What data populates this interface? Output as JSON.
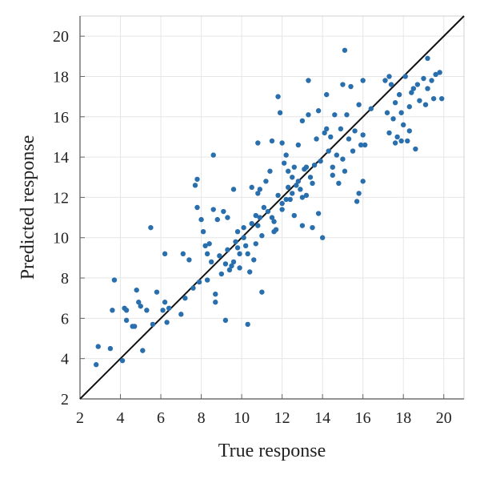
{
  "chart_data": {
    "type": "scatter",
    "title": "",
    "xlabel": "True response",
    "ylabel": "Predicted response",
    "xlim": [
      2,
      21
    ],
    "ylim": [
      2,
      21
    ],
    "xticks": [
      2,
      4,
      6,
      8,
      10,
      12,
      14,
      16,
      18,
      20
    ],
    "yticks": [
      2,
      4,
      6,
      8,
      10,
      12,
      14,
      16,
      18,
      20
    ],
    "grid": true,
    "legend": "none",
    "colors": {
      "points": "#2a6fad",
      "reference_line": "#111111"
    },
    "reference_line": {
      "from": [
        2,
        2
      ],
      "to": [
        21,
        21
      ]
    },
    "points": [
      [
        2.8,
        3.7
      ],
      [
        2.9,
        4.6
      ],
      [
        3.5,
        4.5
      ],
      [
        3.6,
        6.4
      ],
      [
        3.7,
        7.9
      ],
      [
        4.1,
        3.9
      ],
      [
        4.2,
        6.5
      ],
      [
        4.3,
        5.9
      ],
      [
        4.3,
        6.4
      ],
      [
        4.6,
        5.6
      ],
      [
        4.7,
        5.6
      ],
      [
        4.8,
        7.4
      ],
      [
        4.9,
        6.8
      ],
      [
        5.0,
        6.6
      ],
      [
        5.1,
        4.4
      ],
      [
        5.3,
        6.4
      ],
      [
        5.5,
        10.5
      ],
      [
        5.6,
        5.7
      ],
      [
        5.8,
        7.3
      ],
      [
        6.1,
        6.4
      ],
      [
        6.2,
        6.8
      ],
      [
        6.2,
        9.2
      ],
      [
        6.3,
        5.8
      ],
      [
        6.4,
        6.5
      ],
      [
        7.0,
        6.2
      ],
      [
        7.1,
        9.2
      ],
      [
        7.2,
        7.0
      ],
      [
        7.4,
        8.9
      ],
      [
        7.6,
        7.5
      ],
      [
        7.7,
        12.6
      ],
      [
        7.8,
        11.5
      ],
      [
        7.8,
        12.9
      ],
      [
        7.9,
        7.8
      ],
      [
        8.0,
        10.9
      ],
      [
        8.1,
        10.3
      ],
      [
        8.2,
        9.6
      ],
      [
        8.3,
        9.2
      ],
      [
        8.3,
        7.9
      ],
      [
        8.4,
        9.7
      ],
      [
        8.5,
        8.8
      ],
      [
        8.6,
        11.4
      ],
      [
        8.6,
        14.1
      ],
      [
        8.7,
        6.8
      ],
      [
        8.7,
        7.2
      ],
      [
        8.8,
        10.9
      ],
      [
        8.9,
        9.1
      ],
      [
        9.0,
        8.2
      ],
      [
        9.1,
        11.3
      ],
      [
        9.2,
        8.7
      ],
      [
        9.3,
        9.4
      ],
      [
        9.3,
        11.0
      ],
      [
        9.4,
        8.4
      ],
      [
        9.5,
        8.6
      ],
      [
        9.6,
        8.8
      ],
      [
        9.6,
        12.4
      ],
      [
        9.7,
        9.8
      ],
      [
        9.8,
        9.5
      ],
      [
        9.8,
        10.3
      ],
      [
        9.9,
        9.2
      ],
      [
        9.9,
        8.5
      ],
      [
        9.2,
        5.9
      ],
      [
        10.1,
        10.0
      ],
      [
        10.1,
        10.5
      ],
      [
        10.2,
        9.6
      ],
      [
        10.3,
        9.2
      ],
      [
        10.3,
        5.7
      ],
      [
        10.4,
        8.3
      ],
      [
        10.5,
        10.7
      ],
      [
        10.5,
        12.5
      ],
      [
        10.6,
        8.9
      ],
      [
        10.7,
        9.7
      ],
      [
        10.7,
        11.1
      ],
      [
        10.8,
        12.2
      ],
      [
        10.8,
        14.7
      ],
      [
        10.8,
        10.6
      ],
      [
        10.9,
        11.0
      ],
      [
        10.9,
        12.4
      ],
      [
        11.0,
        7.3
      ],
      [
        11.0,
        10.1
      ],
      [
        11.1,
        11.5
      ],
      [
        11.2,
        12.8
      ],
      [
        11.3,
        11.3
      ],
      [
        11.4,
        13.3
      ],
      [
        11.5,
        14.8
      ],
      [
        11.5,
        11.0
      ],
      [
        11.6,
        10.8
      ],
      [
        11.6,
        10.3
      ],
      [
        11.7,
        10.4
      ],
      [
        11.8,
        17.0
      ],
      [
        11.8,
        12.1
      ],
      [
        11.9,
        16.2
      ],
      [
        12.0,
        11.7
      ],
      [
        12.0,
        14.7
      ],
      [
        12.0,
        11.4
      ],
      [
        12.1,
        13.7
      ],
      [
        12.2,
        14.1
      ],
      [
        12.2,
        11.9
      ],
      [
        12.3,
        12.5
      ],
      [
        12.3,
        13.3
      ],
      [
        12.4,
        11.9
      ],
      [
        12.5,
        13.0
      ],
      [
        12.5,
        12.2
      ],
      [
        12.6,
        11.1
      ],
      [
        12.6,
        13.5
      ],
      [
        12.7,
        12.6
      ],
      [
        12.8,
        12.8
      ],
      [
        12.8,
        14.6
      ],
      [
        12.9,
        12.4
      ],
      [
        13.0,
        12.0
      ],
      [
        13.0,
        15.8
      ],
      [
        13.0,
        10.6
      ],
      [
        13.1,
        13.4
      ],
      [
        13.2,
        12.1
      ],
      [
        13.2,
        13.5
      ],
      [
        13.3,
        16.1
      ],
      [
        13.3,
        17.8
      ],
      [
        13.4,
        13.0
      ],
      [
        13.5,
        10.5
      ],
      [
        13.5,
        12.7
      ],
      [
        13.6,
        13.6
      ],
      [
        13.7,
        14.9
      ],
      [
        13.8,
        16.3
      ],
      [
        13.8,
        11.2
      ],
      [
        13.9,
        13.8
      ],
      [
        14.0,
        10.0
      ],
      [
        14.1,
        15.2
      ],
      [
        14.2,
        15.4
      ],
      [
        14.2,
        17.1
      ],
      [
        14.3,
        14.3
      ],
      [
        14.4,
        15.0
      ],
      [
        14.5,
        13.1
      ],
      [
        14.5,
        13.5
      ],
      [
        14.6,
        16.1
      ],
      [
        14.7,
        14.1
      ],
      [
        14.8,
        12.7
      ],
      [
        14.9,
        15.4
      ],
      [
        15.0,
        13.9
      ],
      [
        15.0,
        17.6
      ],
      [
        15.1,
        19.3
      ],
      [
        15.1,
        13.3
      ],
      [
        15.2,
        16.1
      ],
      [
        15.3,
        14.9
      ],
      [
        15.4,
        17.5
      ],
      [
        15.5,
        14.3
      ],
      [
        15.6,
        15.3
      ],
      [
        15.7,
        11.8
      ],
      [
        15.8,
        12.2
      ],
      [
        15.8,
        16.6
      ],
      [
        15.9,
        14.6
      ],
      [
        16.0,
        15.1
      ],
      [
        16.0,
        17.8
      ],
      [
        16.0,
        12.8
      ],
      [
        16.1,
        14.6
      ],
      [
        16.4,
        16.4
      ],
      [
        17.1,
        17.8
      ],
      [
        17.2,
        16.2
      ],
      [
        17.3,
        18.0
      ],
      [
        17.3,
        15.2
      ],
      [
        17.4,
        17.6
      ],
      [
        17.5,
        15.9
      ],
      [
        17.6,
        16.7
      ],
      [
        17.6,
        14.7
      ],
      [
        17.7,
        15.0
      ],
      [
        17.8,
        17.1
      ],
      [
        17.9,
        14.8
      ],
      [
        17.9,
        16.2
      ],
      [
        18.0,
        15.6
      ],
      [
        18.1,
        18.0
      ],
      [
        18.2,
        14.8
      ],
      [
        18.3,
        16.5
      ],
      [
        18.3,
        15.3
      ],
      [
        18.4,
        17.2
      ],
      [
        18.5,
        17.4
      ],
      [
        18.6,
        14.4
      ],
      [
        18.7,
        17.6
      ],
      [
        18.8,
        16.8
      ],
      [
        19.0,
        17.9
      ],
      [
        19.1,
        16.6
      ],
      [
        19.2,
        18.9
      ],
      [
        19.2,
        17.4
      ],
      [
        19.4,
        17.8
      ],
      [
        19.5,
        16.9
      ],
      [
        19.6,
        18.1
      ],
      [
        19.8,
        18.2
      ],
      [
        19.9,
        16.9
      ]
    ]
  }
}
